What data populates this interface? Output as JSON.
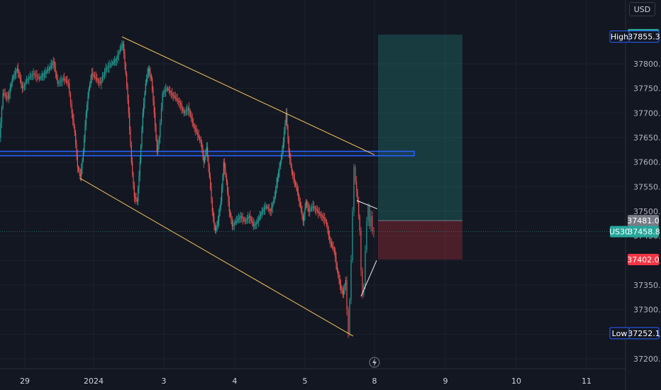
{
  "currency": "USD",
  "chart_data": {
    "type": "candlestick",
    "symbol": "US30",
    "x_ticks": [
      "29",
      "2024",
      "3",
      "4",
      "5",
      "8",
      "9",
      "10",
      "11"
    ],
    "y_ticks": [
      37200,
      37250,
      37300,
      37350,
      37400,
      37450,
      37500,
      37550,
      37600,
      37650,
      37700,
      37750,
      37800
    ],
    "y_range": [
      37180,
      37870
    ],
    "grid": true,
    "last_price": 37458.8,
    "high": 37855.3,
    "low": 37252.1,
    "position": {
      "type": "long",
      "entry": 37481.0,
      "target": 37859.4,
      "stop": 37402.0
    },
    "price_labels": [
      {
        "text": "37859.4",
        "value": 37859.4,
        "color": "#26a69a"
      },
      {
        "text": "37481.0",
        "value": 37481.0,
        "color": "#787b86"
      },
      {
        "text": "37458.8",
        "value": 37458.8,
        "color": "#26a69a"
      },
      {
        "text": "37402.0",
        "value": 37402.0,
        "color": "#f23645"
      }
    ],
    "tag_labels": [
      {
        "tag": "High",
        "text": "37855.3",
        "value": 37855.3
      },
      {
        "tag": "US30",
        "text": "37458.8",
        "value": 37458.8
      },
      {
        "tag": "Low",
        "text": "37252.1",
        "value": 37252.1
      }
    ],
    "resistance_zone": [
      37613,
      37622
    ],
    "price_path": [
      [
        0,
        37650
      ],
      [
        5,
        37740
      ],
      [
        12,
        37730
      ],
      [
        18,
        37770
      ],
      [
        25,
        37790
      ],
      [
        32,
        37750
      ],
      [
        40,
        37770
      ],
      [
        48,
        37780
      ],
      [
        56,
        37770
      ],
      [
        63,
        37780
      ],
      [
        70,
        37790
      ],
      [
        76,
        37805
      ],
      [
        82,
        37760
      ],
      [
        90,
        37770
      ],
      [
        97,
        37760
      ],
      [
        102,
        37700
      ],
      [
        106,
        37660
      ],
      [
        110,
        37590
      ],
      [
        114,
        37570
      ],
      [
        118,
        37620
      ],
      [
        122,
        37700
      ],
      [
        126,
        37750
      ],
      [
        130,
        37780
      ],
      [
        136,
        37770
      ],
      [
        142,
        37760
      ],
      [
        150,
        37790
      ],
      [
        158,
        37800
      ],
      [
        165,
        37810
      ],
      [
        170,
        37830
      ],
      [
        174,
        37840
      ],
      [
        178,
        37780
      ],
      [
        182,
        37700
      ],
      [
        186,
        37600
      ],
      [
        190,
        37530
      ],
      [
        194,
        37520
      ],
      [
        198,
        37600
      ],
      [
        202,
        37700
      ],
      [
        206,
        37760
      ],
      [
        210,
        37790
      ],
      [
        214,
        37770
      ],
      [
        218,
        37700
      ],
      [
        222,
        37620
      ],
      [
        225,
        37650
      ],
      [
        230,
        37740
      ],
      [
        236,
        37750
      ],
      [
        242,
        37740
      ],
      [
        248,
        37730
      ],
      [
        254,
        37720
      ],
      [
        260,
        37700
      ],
      [
        266,
        37710
      ],
      [
        272,
        37680
      ],
      [
        278,
        37660
      ],
      [
        284,
        37640
      ],
      [
        288,
        37600
      ],
      [
        292,
        37630
      ],
      [
        296,
        37570
      ],
      [
        300,
        37500
      ],
      [
        304,
        37460
      ],
      [
        308,
        37480
      ],
      [
        312,
        37520
      ],
      [
        316,
        37600
      ],
      [
        320,
        37560
      ],
      [
        324,
        37500
      ],
      [
        328,
        37470
      ],
      [
        334,
        37480
      ],
      [
        340,
        37490
      ],
      [
        346,
        37480
      ],
      [
        352,
        37490
      ],
      [
        358,
        37470
      ],
      [
        364,
        37480
      ],
      [
        370,
        37500
      ],
      [
        376,
        37510
      ],
      [
        382,
        37500
      ],
      [
        388,
        37530
      ],
      [
        392,
        37570
      ],
      [
        396,
        37600
      ],
      [
        400,
        37640
      ],
      [
        404,
        37700
      ],
      [
        408,
        37620
      ],
      [
        412,
        37580
      ],
      [
        416,
        37560
      ],
      [
        420,
        37540
      ],
      [
        424,
        37510
      ],
      [
        428,
        37480
      ],
      [
        432,
        37520
      ],
      [
        436,
        37500
      ],
      [
        442,
        37510
      ],
      [
        448,
        37500
      ],
      [
        454,
        37490
      ],
      [
        460,
        37480
      ],
      [
        464,
        37450
      ],
      [
        468,
        37430
      ],
      [
        472,
        37420
      ],
      [
        476,
        37380
      ],
      [
        480,
        37350
      ],
      [
        484,
        37330
      ],
      [
        488,
        37360
      ],
      [
        490,
        37300
      ],
      [
        492,
        37250
      ],
      [
        494,
        37320
      ],
      [
        496,
        37400
      ],
      [
        498,
        37500
      ],
      [
        500,
        37590
      ],
      [
        502,
        37560
      ],
      [
        505,
        37520
      ],
      [
        508,
        37460
      ],
      [
        510,
        37380
      ],
      [
        512,
        37330
      ],
      [
        514,
        37350
      ],
      [
        516,
        37420
      ],
      [
        518,
        37480
      ],
      [
        520,
        37510
      ],
      [
        522,
        37470
      ],
      [
        524,
        37490
      ],
      [
        526,
        37460
      ],
      [
        528,
        37458.8
      ]
    ],
    "channel_lines": [
      [
        [
          172,
          37855
        ],
        [
          528,
          37615
        ]
      ],
      [
        [
          112,
          37568
        ],
        [
          498,
          37246
        ]
      ]
    ],
    "wedge_lines": [
      [
        [
          503,
          37522
        ],
        [
          532,
          37505
        ]
      ],
      [
        [
          509,
          37327
        ],
        [
          531,
          37400
        ]
      ]
    ]
  }
}
